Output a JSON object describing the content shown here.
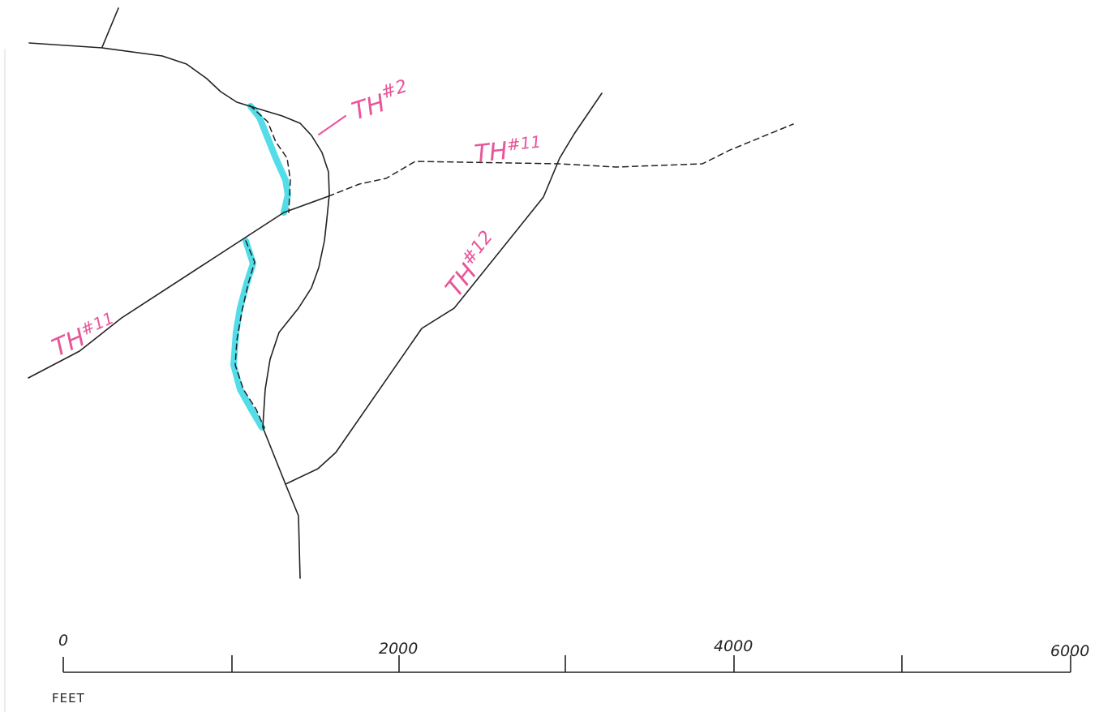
{
  "colors": {
    "line": "#222222",
    "highlight": "#3fd9e6",
    "label": "#e8559a"
  },
  "labels": {
    "th2": "TH",
    "th2_sup": "#2",
    "th11_upper": "TH",
    "th11_upper_sup": "#11",
    "th12": "TH",
    "th12_sup": "#12",
    "th11_lower": "TH",
    "th11_lower_sup": "#11"
  },
  "scale_bar": {
    "ticks": [
      "0",
      "2000",
      "4000",
      "6000"
    ],
    "unit": "FEET"
  }
}
